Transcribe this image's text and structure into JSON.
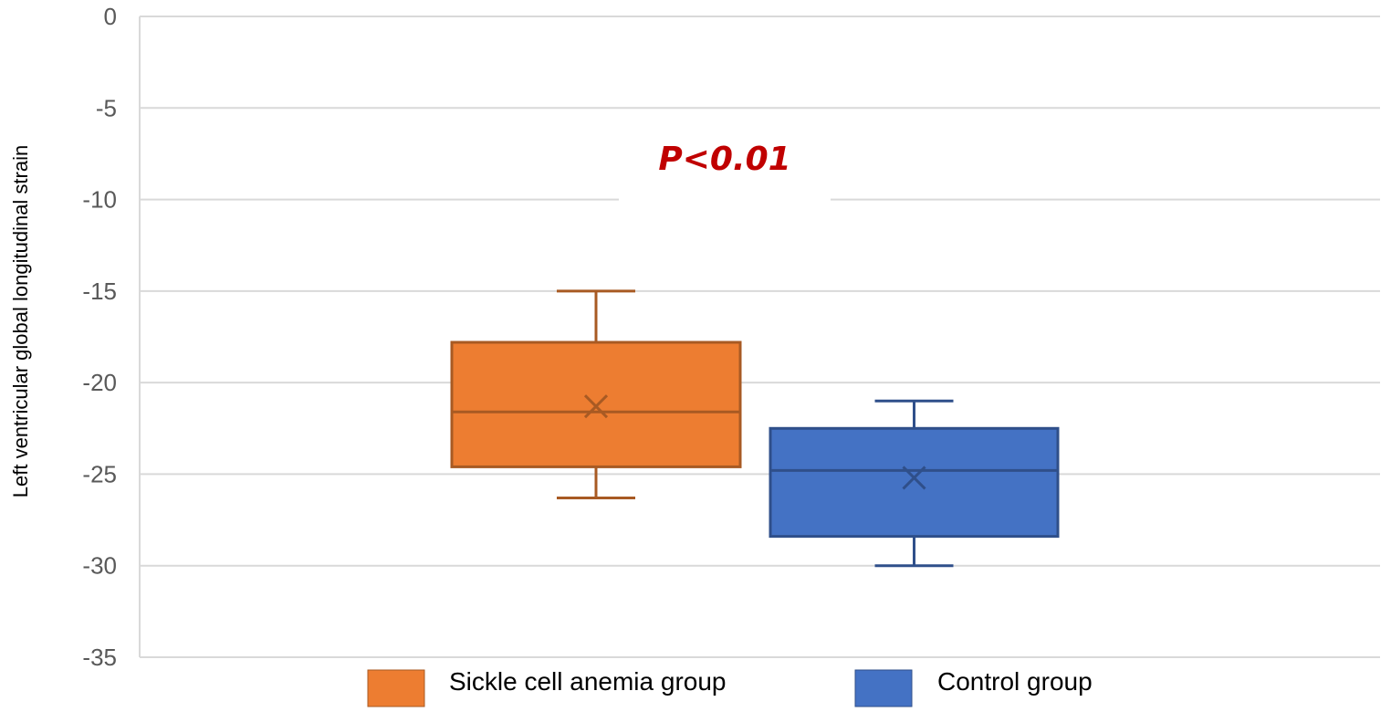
{
  "chart_data": {
    "type": "box",
    "ylabel": "Left ventricular global longitudinal strain",
    "ylim": [
      -35,
      0
    ],
    "yticks": [
      0,
      -5,
      -10,
      -15,
      -20,
      -25,
      -30,
      -35
    ],
    "ytick_labels": [
      "0",
      "-5",
      "-10",
      "-15",
      "-20",
      "-25",
      "-30",
      "-35"
    ],
    "grid": true,
    "legend_position": "bottom",
    "annotation": "P<0.01",
    "series": [
      {
        "name": "Sickle cell anemia group",
        "color": "#ed7d31",
        "stroke": "#a85a23",
        "whisker_high": -15.0,
        "q3": -17.8,
        "median": -21.6,
        "mean": -21.3,
        "q1": -24.6,
        "whisker_low": -26.3
      },
      {
        "name": "Control group",
        "color": "#4472c4",
        "stroke": "#2f4f8a",
        "whisker_high": -21.0,
        "q3": -22.5,
        "median": -24.8,
        "mean": -25.2,
        "q1": -28.4,
        "whisker_low": -30.0
      }
    ]
  }
}
